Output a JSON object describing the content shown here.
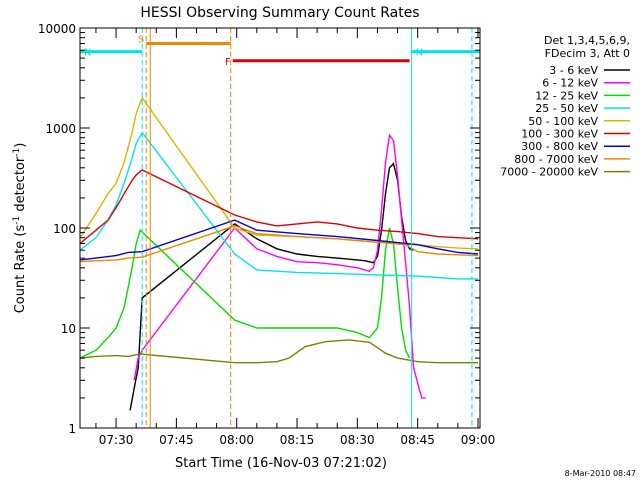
{
  "chart_data": {
    "type": "line",
    "title": "HESSI Observing Summary Count Rates",
    "xlabel": "Start Time (16-Nov-03 07:21:02)",
    "ylabel": "Count Rate (s⁻¹ detector⁻¹)",
    "ylabel_main": "Count Rate (s",
    "ylabel_sup1": "-1",
    "ylabel_mid": " detector",
    "ylabel_sup2": "-1",
    "ylabel_end": ")",
    "y_scale": "log",
    "ylim": [
      1,
      10000
    ],
    "xlim": [
      "07:21:02",
      "09:00:30"
    ],
    "x_ticks": [
      "07:30",
      "07:45",
      "08:00",
      "08:15",
      "08:30",
      "08:45",
      "09:00"
    ],
    "y_ticks": [
      "1",
      "10",
      "100",
      "1000",
      "10000"
    ],
    "timestamp": "8-Mar-2010 08:47",
    "legend": {
      "header1": "Det 1,3,4,5,6,9,",
      "header2": "FDecim 3, Att 0",
      "entries": [
        {
          "label": "3 - 6 keV",
          "color": "#000000"
        },
        {
          "label": "6 - 12 keV",
          "color": "#ff00ff"
        },
        {
          "label": "12 - 25 keV",
          "color": "#00dd00"
        },
        {
          "label": "25 - 50 keV",
          "color": "#00e5e5"
        },
        {
          "label": "50 - 100 keV",
          "color": "#d4b800"
        },
        {
          "label": "100 - 300 keV",
          "color": "#dd0000"
        },
        {
          "label": "300 - 800 keV",
          "color": "#0000dd"
        },
        {
          "label": "800 - 7000 keV",
          "color": "#ee8800"
        },
        {
          "label": "7000 - 20000 keV",
          "color": "#808000"
        }
      ]
    },
    "flags": [
      {
        "label": "S",
        "color": "#ee8800",
        "start": "07:37:30",
        "end": "07:58:30",
        "level": 7000
      },
      {
        "label": "N",
        "color": "#00e5e5",
        "start": "07:21:02",
        "end": "07:36:30",
        "level": 5800
      },
      {
        "label": "N",
        "color": "#00e5e5",
        "start": "08:43:30",
        "end": "09:00:30",
        "level": 5800
      },
      {
        "label": "F",
        "color": "#dd0000",
        "start": "07:59:00",
        "end": "08:43:00",
        "level": 4700
      }
    ],
    "vlines": [
      {
        "t": "07:21:02",
        "color": "#00e5e5",
        "style": "solid"
      },
      {
        "t": "07:36:30",
        "color": "#00e5e5",
        "style": "dashed"
      },
      {
        "t": "07:37:30",
        "color": "#ee8800",
        "style": "dashed"
      },
      {
        "t": "07:38:30",
        "color": "#ee8800",
        "style": "solid"
      },
      {
        "t": "07:58:30",
        "color": "#ee8800",
        "style": "dashed"
      },
      {
        "t": "08:43:30",
        "color": "#00e5e5",
        "style": "solid"
      },
      {
        "t": "08:58:30",
        "color": "#00e5e5",
        "style": "dashed"
      }
    ],
    "gap": [
      "07:37:00",
      "07:59:30"
    ],
    "series": [
      {
        "name": "3 - 6 keV",
        "color": "#000000",
        "points": [
          [
            "07:33:30",
            1.5
          ],
          [
            "07:34:30",
            2.5
          ],
          [
            "07:35:30",
            4
          ],
          [
            "07:36:30",
            20
          ],
          [
            "07:59:30",
            110
          ],
          [
            "08:05",
            78
          ],
          [
            "08:10",
            62
          ],
          [
            "08:15",
            55
          ],
          [
            "08:20",
            52
          ],
          [
            "08:25",
            50
          ],
          [
            "08:30",
            48
          ],
          [
            "08:32",
            47
          ],
          [
            "08:34",
            45
          ],
          [
            "08:35",
            52
          ],
          [
            "08:36",
            95
          ],
          [
            "08:37",
            220
          ],
          [
            "08:38",
            400
          ],
          [
            "08:39",
            440
          ],
          [
            "08:40",
            300
          ],
          [
            "08:41",
            130
          ],
          [
            "08:42",
            75
          ],
          [
            "08:43",
            62
          ],
          [
            "08:44",
            60
          ]
        ]
      },
      {
        "name": "6 - 12 keV",
        "color": "#ff00ff",
        "points": [
          [
            "07:34:30",
            3
          ],
          [
            "07:35:30",
            5
          ],
          [
            "07:36:30",
            6
          ],
          [
            "07:59:30",
            100
          ],
          [
            "08:05",
            62
          ],
          [
            "08:10",
            52
          ],
          [
            "08:15",
            46
          ],
          [
            "08:20",
            45
          ],
          [
            "08:25",
            43
          ],
          [
            "08:30",
            40
          ],
          [
            "08:33",
            37
          ],
          [
            "08:34",
            40
          ],
          [
            "08:35",
            60
          ],
          [
            "08:36",
            150
          ],
          [
            "08:37",
            450
          ],
          [
            "08:38",
            850
          ],
          [
            "08:39",
            750
          ],
          [
            "08:40",
            330
          ],
          [
            "08:41",
            120
          ],
          [
            "08:42",
            45
          ],
          [
            "08:43",
            16
          ],
          [
            "08:44",
            4
          ],
          [
            "08:46",
            2
          ],
          [
            "08:47",
            2
          ]
        ]
      },
      {
        "name": "12 - 25 keV",
        "color": "#00dd00",
        "points": [
          [
            "07:21:02",
            5
          ],
          [
            "07:25",
            6
          ],
          [
            "07:28",
            8
          ],
          [
            "07:30",
            10
          ],
          [
            "07:32",
            16
          ],
          [
            "07:34",
            40
          ],
          [
            "07:35",
            70
          ],
          [
            "07:36",
            95
          ],
          [
            "07:59:30",
            12
          ],
          [
            "08:05",
            10
          ],
          [
            "08:10",
            10
          ],
          [
            "08:15",
            10
          ],
          [
            "08:20",
            10
          ],
          [
            "08:25",
            10
          ],
          [
            "08:30",
            9
          ],
          [
            "08:33",
            8
          ],
          [
            "08:35",
            10
          ],
          [
            "08:36",
            20
          ],
          [
            "08:37",
            60
          ],
          [
            "08:38",
            100
          ],
          [
            "08:39",
            70
          ],
          [
            "08:40",
            25
          ],
          [
            "08:41",
            10
          ],
          [
            "08:42",
            6
          ],
          [
            "08:43",
            5
          ]
        ]
      },
      {
        "name": "25 - 50 keV",
        "color": "#00e5e5",
        "points": [
          [
            "07:21:02",
            60
          ],
          [
            "07:25",
            80
          ],
          [
            "07:28",
            120
          ],
          [
            "07:30",
            170
          ],
          [
            "07:32",
            280
          ],
          [
            "07:34",
            500
          ],
          [
            "07:35",
            700
          ],
          [
            "07:36:30",
            900
          ],
          [
            "07:59:30",
            55
          ],
          [
            "08:05",
            38
          ],
          [
            "08:15",
            36
          ],
          [
            "08:25",
            35
          ],
          [
            "08:35",
            34
          ],
          [
            "08:45",
            33
          ],
          [
            "08:50",
            32
          ],
          [
            "08:55",
            31
          ],
          [
            "09:00",
            31
          ]
        ]
      },
      {
        "name": "50 - 100 keV",
        "color": "#d4b800",
        "points": [
          [
            "07:21:02",
            80
          ],
          [
            "07:25",
            140
          ],
          [
            "07:28",
            220
          ],
          [
            "07:30",
            280
          ],
          [
            "07:32",
            450
          ],
          [
            "07:34",
            900
          ],
          [
            "07:35",
            1400
          ],
          [
            "07:36:30",
            2000
          ],
          [
            "07:59:30",
            100
          ],
          [
            "08:05",
            85
          ],
          [
            "08:15",
            82
          ],
          [
            "08:25",
            78
          ],
          [
            "08:35",
            72
          ],
          [
            "08:45",
            68
          ],
          [
            "08:50",
            65
          ],
          [
            "08:55",
            63
          ],
          [
            "09:00",
            62
          ]
        ]
      },
      {
        "name": "100 - 300 keV",
        "color": "#dd0000",
        "points": [
          [
            "07:21:02",
            70
          ],
          [
            "07:25",
            95
          ],
          [
            "07:28",
            120
          ],
          [
            "07:30",
            160
          ],
          [
            "07:32",
            220
          ],
          [
            "07:34",
            300
          ],
          [
            "07:35",
            340
          ],
          [
            "07:36:30",
            380
          ],
          [
            "07:59:30",
            135
          ],
          [
            "08:05",
            115
          ],
          [
            "08:10",
            105
          ],
          [
            "08:15",
            110
          ],
          [
            "08:20",
            115
          ],
          [
            "08:25",
            110
          ],
          [
            "08:30",
            100
          ],
          [
            "08:35",
            95
          ],
          [
            "08:40",
            92
          ],
          [
            "08:45",
            88
          ],
          [
            "08:50",
            82
          ],
          [
            "08:55",
            80
          ],
          [
            "09:00",
            78
          ]
        ]
      },
      {
        "name": "300 - 800 keV",
        "color": "#0000dd",
        "points": [
          [
            "07:21:02",
            48
          ],
          [
            "07:25",
            50
          ],
          [
            "07:30",
            53
          ],
          [
            "07:33",
            57
          ],
          [
            "07:36:30",
            58
          ],
          [
            "07:59:30",
            120
          ],
          [
            "08:05",
            95
          ],
          [
            "08:15",
            88
          ],
          [
            "08:25",
            82
          ],
          [
            "08:35",
            75
          ],
          [
            "08:45",
            68
          ],
          [
            "08:50",
            62
          ],
          [
            "08:55",
            57
          ],
          [
            "09:00",
            55
          ]
        ]
      },
      {
        "name": "800 - 7000 keV",
        "color": "#ee8800",
        "points": [
          [
            "07:21:02",
            46
          ],
          [
            "07:25",
            47
          ],
          [
            "07:30",
            48
          ],
          [
            "07:33",
            50
          ],
          [
            "07:36:30",
            51
          ],
          [
            "07:59:30",
            105
          ],
          [
            "08:05",
            88
          ],
          [
            "08:15",
            82
          ],
          [
            "08:25",
            78
          ],
          [
            "08:35",
            72
          ],
          [
            "08:42",
            68
          ],
          [
            "08:45",
            58
          ],
          [
            "08:50",
            55
          ],
          [
            "08:55",
            54
          ],
          [
            "09:00",
            53
          ]
        ]
      },
      {
        "name": "7000 - 20000 keV",
        "color": "#808000",
        "points": [
          [
            "07:21:02",
            5
          ],
          [
            "07:25",
            5.2
          ],
          [
            "07:30",
            5.3
          ],
          [
            "07:33",
            5.2
          ],
          [
            "07:36",
            5.5
          ],
          [
            "07:59:30",
            4.5
          ],
          [
            "08:05",
            4.5
          ],
          [
            "08:10",
            4.6
          ],
          [
            "08:13",
            5
          ],
          [
            "08:17",
            6.5
          ],
          [
            "08:22",
            7.3
          ],
          [
            "08:28",
            7.6
          ],
          [
            "08:33",
            7.2
          ],
          [
            "08:37",
            5.6
          ],
          [
            "08:40",
            5
          ],
          [
            "08:45",
            4.6
          ],
          [
            "08:50",
            4.5
          ],
          [
            "09:00",
            4.5
          ]
        ]
      }
    ]
  }
}
